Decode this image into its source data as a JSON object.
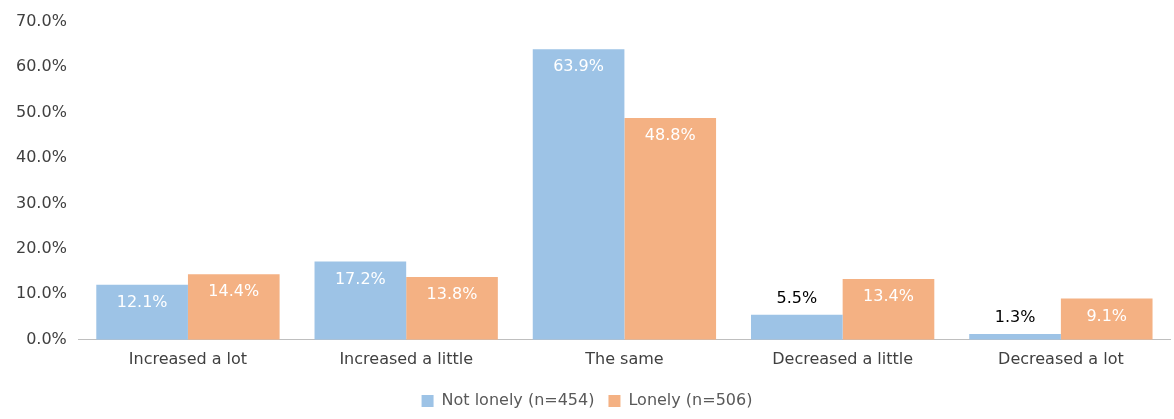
{
  "chart_data": {
    "type": "bar",
    "categories": [
      "Increased a lot",
      "Increased a little",
      "The same",
      "Decreased a little",
      "Decreased a lot"
    ],
    "series": [
      {
        "name": "Not lonely (n=454)",
        "color": "#9dc3e6",
        "values": [
          12.1,
          17.2,
          63.9,
          5.5,
          1.3
        ],
        "value_labels": [
          "12.1%",
          "17.2%",
          "63.9%",
          "5.5%",
          "1.3%"
        ]
      },
      {
        "name": "Lonely (n=506)",
        "color": "#f4b183",
        "values": [
          14.4,
          13.8,
          48.8,
          13.4,
          9.1
        ],
        "value_labels": [
          "14.4%",
          "13.8%",
          "48.8%",
          "13.4%",
          "9.1%"
        ]
      }
    ],
    "ylim": [
      0,
      70
    ],
    "yticks": [
      {
        "value": 0,
        "label": "0.0%"
      },
      {
        "value": 10,
        "label": "10.0%"
      },
      {
        "value": 20,
        "label": "20.0%"
      },
      {
        "value": 30,
        "label": "30.0%"
      },
      {
        "value": 40,
        "label": "40.0%"
      },
      {
        "value": 50,
        "label": "50.0%"
      },
      {
        "value": 60,
        "label": "60.0%"
      },
      {
        "value": 70,
        "label": "70.0%"
      }
    ],
    "grid": false,
    "legend": "bottom"
  }
}
